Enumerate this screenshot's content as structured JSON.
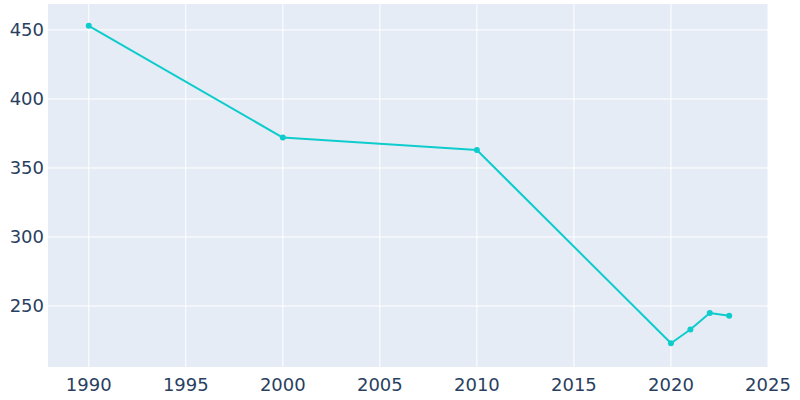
{
  "chart_data": {
    "type": "line",
    "x": [
      1990,
      2000,
      2010,
      2020,
      2021,
      2022,
      2023
    ],
    "values": [
      453,
      372,
      363,
      223,
      233,
      245,
      243
    ],
    "color": "#0fcccc",
    "marker": "circle",
    "xlim": [
      1987.9,
      2025
    ],
    "xticks": [
      1990,
      1995,
      2000,
      2005,
      2010,
      2015,
      2020,
      2025
    ],
    "ylim": [
      205.8,
      468.8
    ],
    "yticks": [
      250,
      300,
      350,
      400,
      450
    ],
    "grid": true
  }
}
